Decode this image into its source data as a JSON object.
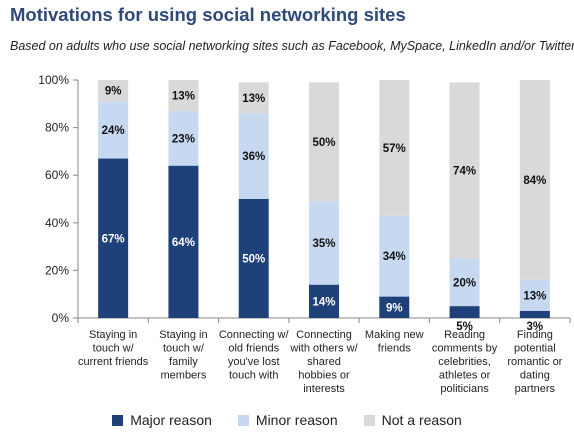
{
  "chart_data": {
    "type": "bar",
    "stacked": true,
    "title": "Motivations for using social networking sites",
    "subtitle": "Based on adults who use social networking sites such as Facebook, MySpace,  LinkedIn and/or Twitter",
    "ylim": [
      0,
      100
    ],
    "yticks": [
      "0%",
      "20%",
      "40%",
      "60%",
      "80%",
      "100%"
    ],
    "categories": [
      [
        "Staying in",
        "touch w/",
        "current friends"
      ],
      [
        "Staying in",
        "touch w/",
        "family",
        "members"
      ],
      [
        "Connecting w/",
        "old friends",
        "you've lost",
        "touch with"
      ],
      [
        "Connecting",
        "with others w/",
        "shared",
        "hobbies or",
        "interests"
      ],
      [
        "Making new",
        "friends"
      ],
      [
        "Reading",
        "comments by",
        "celebrities,",
        "athletes or",
        "politicians"
      ],
      [
        "Finding",
        "potential",
        "romantic or",
        "dating",
        "partners"
      ]
    ],
    "series": [
      {
        "name": "Major reason",
        "color": "#1f4179",
        "values": [
          67,
          64,
          50,
          14,
          9,
          5,
          3
        ],
        "labels": [
          "67%",
          "64%",
          "50%",
          "14%",
          "9%",
          "5%",
          "3%"
        ]
      },
      {
        "name": "Minor reason",
        "color": "#c6d9f1",
        "values": [
          24,
          23,
          36,
          35,
          34,
          20,
          13
        ],
        "labels": [
          "24%",
          "23%",
          "36%",
          "35%",
          "34%",
          "20%",
          "13%"
        ]
      },
      {
        "name": "Not a reason",
        "color": "#d9d9d9",
        "values": [
          9,
          13,
          13,
          50,
          57,
          74,
          84
        ],
        "labels": [
          "9%",
          "13%",
          "13%",
          "50%",
          "57%",
          "74%",
          "84%"
        ]
      }
    ],
    "legend_position": "bottom",
    "grid": false
  }
}
